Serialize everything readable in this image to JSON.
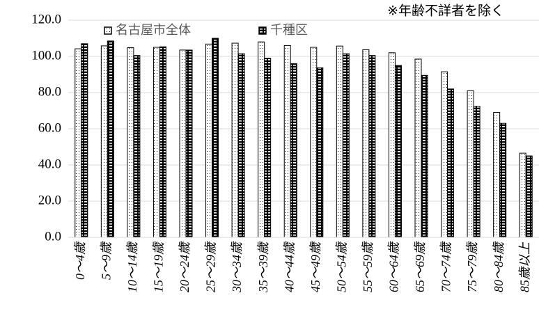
{
  "chart_data": {
    "type": "bar",
    "annotation": "※年齢不詳者を除く",
    "categories": [
      "0～4歳",
      "5～9歳",
      "10～14歳",
      "15～19歳",
      "20～24歳",
      "25～29歳",
      "30～34歳",
      "35～39歳",
      "40～44歳",
      "45～49歳",
      "50～54歳",
      "55～59歳",
      "60～64歳",
      "65～69歳",
      "70～74歳",
      "75～79歳",
      "80～84歳",
      "85歳以上"
    ],
    "series": [
      {
        "name": "名古屋市全体",
        "color": "#ffffff",
        "pattern": "dots",
        "values": [
          104.2,
          105.8,
          104.8,
          105.0,
          103.5,
          106.8,
          107.3,
          108.0,
          106.0,
          105.0,
          105.7,
          103.7,
          102.0,
          98.5,
          91.5,
          81.0,
          69.0,
          46.5
        ]
      },
      {
        "name": "千種区",
        "color": "#000000",
        "pattern": "stripes",
        "values": [
          107.0,
          108.5,
          100.5,
          105.3,
          103.5,
          110.0,
          101.5,
          99.0,
          96.0,
          93.7,
          101.5,
          100.5,
          95.0,
          89.5,
          82.0,
          72.5,
          63.0,
          45.0
        ]
      }
    ],
    "ylim": [
      0,
      120
    ],
    "yticks": [
      {
        "value": 0,
        "label": "0.0"
      },
      {
        "value": 20,
        "label": "20.0"
      },
      {
        "value": 40,
        "label": "40.0"
      },
      {
        "value": 60,
        "label": "60.0"
      },
      {
        "value": 80,
        "label": "80.0"
      },
      {
        "value": 100,
        "label": "100.0"
      },
      {
        "value": 120,
        "label": "120.0"
      }
    ],
    "grid": true
  }
}
